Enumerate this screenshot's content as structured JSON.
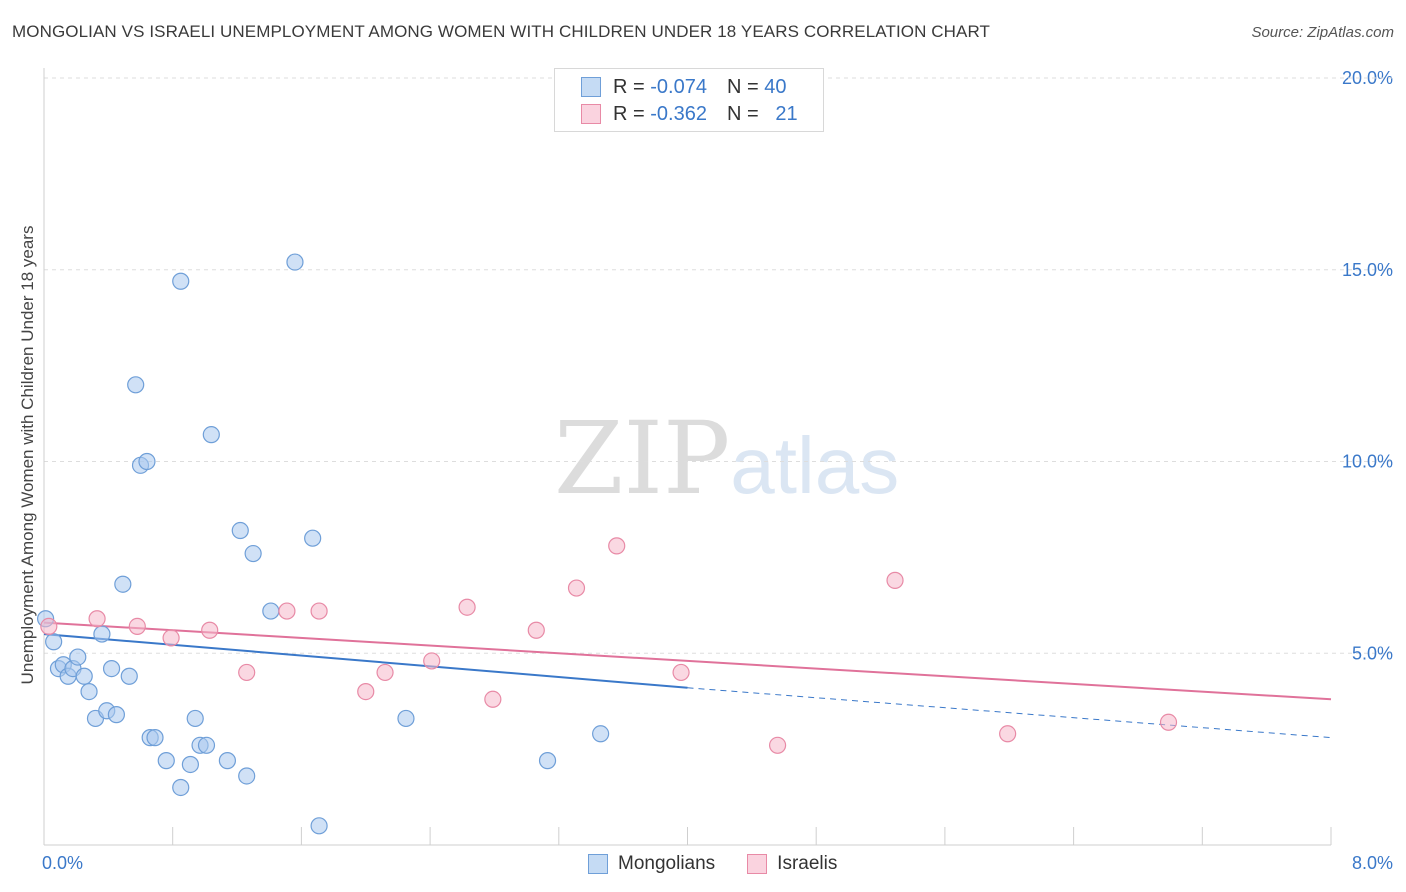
{
  "title": "MONGOLIAN VS ISRAELI UNEMPLOYMENT AMONG WOMEN WITH CHILDREN UNDER 18 YEARS CORRELATION CHART",
  "source": "Source: ZipAtlas.com",
  "watermark": {
    "part1": "ZIP",
    "part2": "atlas"
  },
  "legend_top": [
    {
      "r_label": "R =",
      "r_value": "-0.074",
      "n_label": "N =",
      "n_value": "40"
    },
    {
      "r_label": "R =",
      "r_value": "-0.362",
      "n_label": "N =",
      "n_value": "21"
    }
  ],
  "legend_bottom": [
    "Mongolians",
    "Israelis"
  ],
  "colors": {
    "mongolians_fill": "#a9c9ee",
    "mongolians_stroke": "#6f9fd8",
    "mongolians_line": "#3a78c9",
    "israelis_fill": "#f6b8cb",
    "israelis_stroke": "#e88aa6",
    "israelis_line": "#e0729a",
    "tick_label": "#3a78c9",
    "grid": "#dddddd"
  },
  "chart_data": {
    "type": "scatter",
    "xlabel": "",
    "ylabel": "Unemployment Among Women with Children Under 18 years",
    "xlim": [
      0,
      8
    ],
    "ylim": [
      0,
      20
    ],
    "x_tick_labels": [
      "0.0%",
      "8.0%"
    ],
    "y_ticks": [
      5,
      10,
      15,
      20
    ],
    "y_tick_labels": [
      "5.0%",
      "10.0%",
      "15.0%",
      "20.0%"
    ],
    "grid": "horizontal dashed",
    "legend_placement": "top-center",
    "series": [
      {
        "name": "Mongolians",
        "points": [
          [
            0.01,
            5.9
          ],
          [
            0.06,
            5.3
          ],
          [
            0.09,
            4.6
          ],
          [
            0.12,
            4.7
          ],
          [
            0.15,
            4.4
          ],
          [
            0.18,
            4.6
          ],
          [
            0.21,
            4.9
          ],
          [
            0.25,
            4.4
          ],
          [
            0.28,
            4.0
          ],
          [
            0.32,
            3.3
          ],
          [
            0.36,
            5.5
          ],
          [
            0.39,
            3.5
          ],
          [
            0.42,
            4.6
          ],
          [
            0.45,
            3.4
          ],
          [
            0.49,
            6.8
          ],
          [
            0.53,
            4.4
          ],
          [
            0.57,
            12.0
          ],
          [
            0.6,
            9.9
          ],
          [
            0.64,
            10.0
          ],
          [
            0.66,
            2.8
          ],
          [
            0.69,
            2.8
          ],
          [
            0.76,
            2.2
          ],
          [
            0.85,
            14.7
          ],
          [
            0.85,
            1.5
          ],
          [
            0.91,
            2.1
          ],
          [
            0.94,
            3.3
          ],
          [
            0.97,
            2.6
          ],
          [
            1.01,
            2.6
          ],
          [
            1.04,
            10.7
          ],
          [
            1.14,
            2.2
          ],
          [
            1.22,
            8.2
          ],
          [
            1.26,
            1.8
          ],
          [
            1.3,
            7.6
          ],
          [
            1.41,
            6.1
          ],
          [
            1.56,
            15.2
          ],
          [
            1.67,
            8.0
          ],
          [
            1.71,
            0.5
          ],
          [
            2.25,
            3.3
          ],
          [
            3.13,
            2.2
          ],
          [
            3.46,
            2.9
          ]
        ]
      },
      {
        "name": "Israelis",
        "points": [
          [
            0.03,
            5.7
          ],
          [
            0.33,
            5.9
          ],
          [
            0.58,
            5.7
          ],
          [
            0.79,
            5.4
          ],
          [
            1.03,
            5.6
          ],
          [
            1.26,
            4.5
          ],
          [
            1.51,
            6.1
          ],
          [
            1.71,
            6.1
          ],
          [
            2.0,
            4.0
          ],
          [
            2.12,
            4.5
          ],
          [
            2.41,
            4.8
          ],
          [
            2.63,
            6.2
          ],
          [
            2.79,
            3.8
          ],
          [
            3.06,
            5.6
          ],
          [
            3.31,
            6.7
          ],
          [
            3.56,
            7.8
          ],
          [
            3.96,
            4.5
          ],
          [
            4.56,
            2.6
          ],
          [
            5.29,
            6.9
          ],
          [
            5.99,
            2.9
          ],
          [
            6.99,
            3.2
          ]
        ]
      }
    ],
    "trend_lines": [
      {
        "name": "Mongolians",
        "solid": [
          [
            0.0,
            5.5
          ],
          [
            4.0,
            4.1
          ]
        ],
        "dashed": [
          [
            4.0,
            4.1
          ],
          [
            8.0,
            2.8
          ]
        ]
      },
      {
        "name": "Israelis",
        "solid": [
          [
            0.0,
            5.8
          ],
          [
            8.0,
            3.8
          ]
        ]
      }
    ]
  }
}
